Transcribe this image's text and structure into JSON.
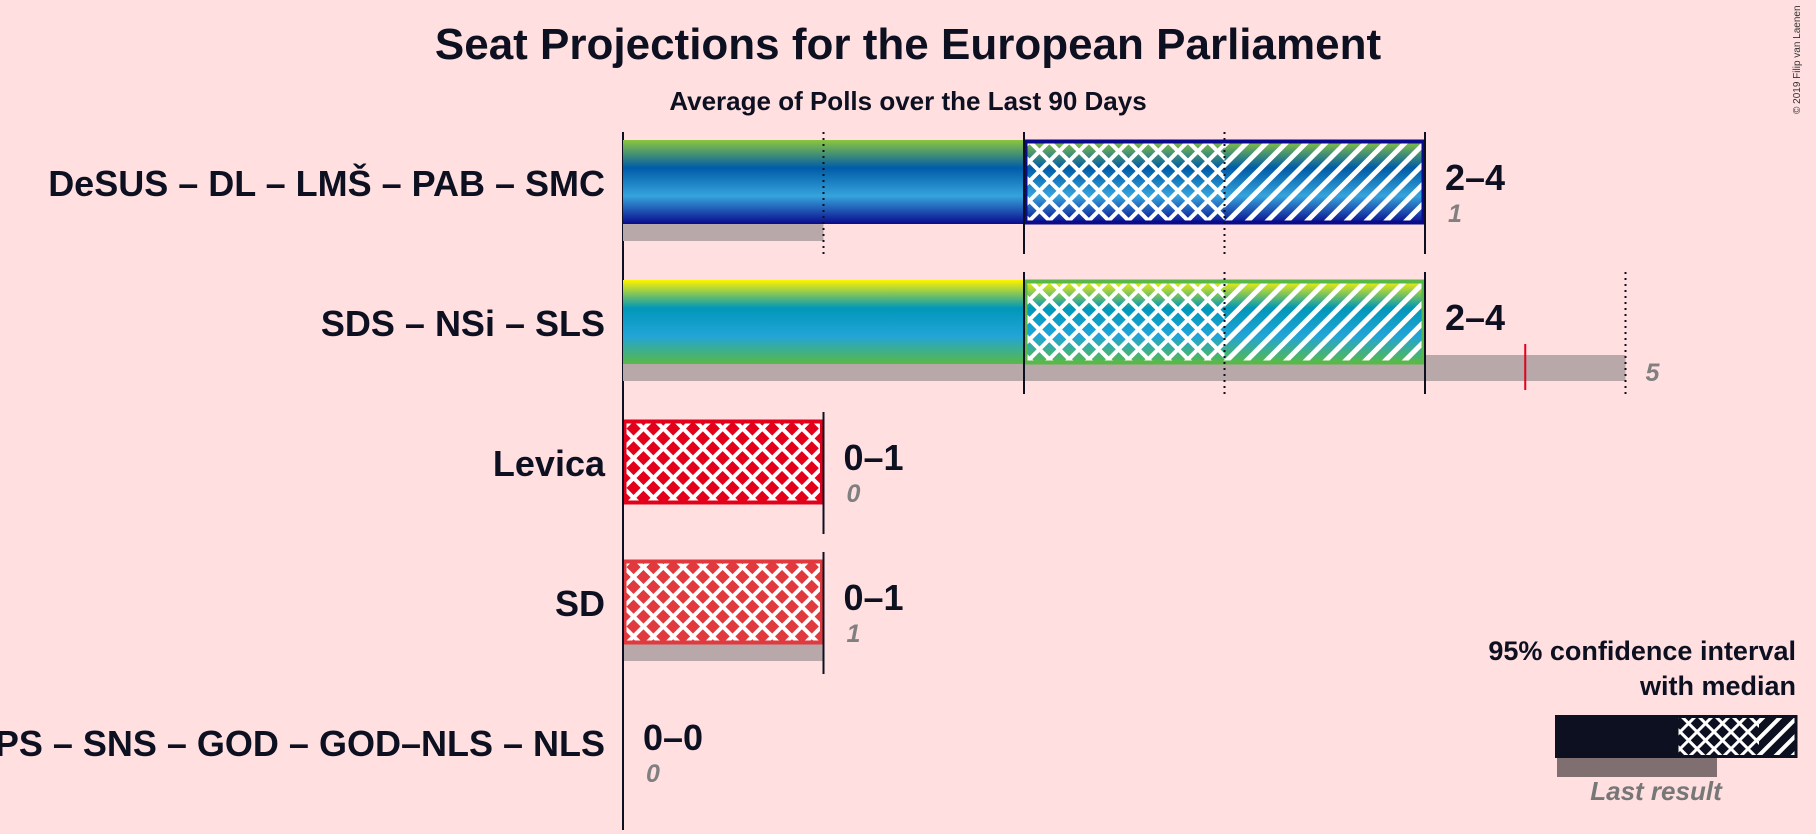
{
  "title": "Seat Projections for the European Parliament",
  "subtitle": "Average of Polls over the Last 90 Days",
  "credit": "© 2019 Filip van Laenen",
  "legend": {
    "title_line1": "95% confidence interval",
    "title_line2": "with median",
    "last_result": "Last result"
  },
  "chart_data": {
    "type": "bar",
    "orientation": "horizontal",
    "x_unit": "seats",
    "xlim": [
      0,
      5
    ],
    "gridlines": [
      1,
      2,
      3,
      4,
      5
    ],
    "parties": [
      {
        "name": "DeSUS – DL – LMŠ – PAB – SMC",
        "ci_low": 2,
        "median": 3,
        "ci_high": 4,
        "range_label": "2–4",
        "last_result": 1,
        "last_label": "1",
        "colors": [
          "#8cc63f",
          "#005ca8",
          "#36a4dc",
          "#0a0a8c"
        ]
      },
      {
        "name": "SDS – NSi – SLS",
        "ci_low": 2,
        "median": 3,
        "ci_high": 4,
        "range_label": "2–4",
        "last_result": 5,
        "last_label": "5",
        "majority_marker": 4.5,
        "colors": [
          "#fff200",
          "#0097b8",
          "#22a4d8",
          "#59b947"
        ]
      },
      {
        "name": "Levica",
        "ci_low": 0,
        "median": 1,
        "ci_high": 1,
        "range_label": "0–1",
        "last_result": 0,
        "last_label": "0",
        "colors": [
          "#e3001b"
        ]
      },
      {
        "name": "SD",
        "ci_low": 0,
        "median": 1,
        "ci_high": 1,
        "range_label": "0–1",
        "last_result": 1,
        "last_label": "1",
        "colors": [
          "#e0393e"
        ]
      },
      {
        "name": "PS – SNS – GOD – GOD–NLS – NLS",
        "ci_low": 0,
        "median": 0,
        "ci_high": 0,
        "range_label": "0–0",
        "last_result": 0,
        "last_label": "0",
        "colors": [
          "#888888"
        ]
      }
    ]
  }
}
